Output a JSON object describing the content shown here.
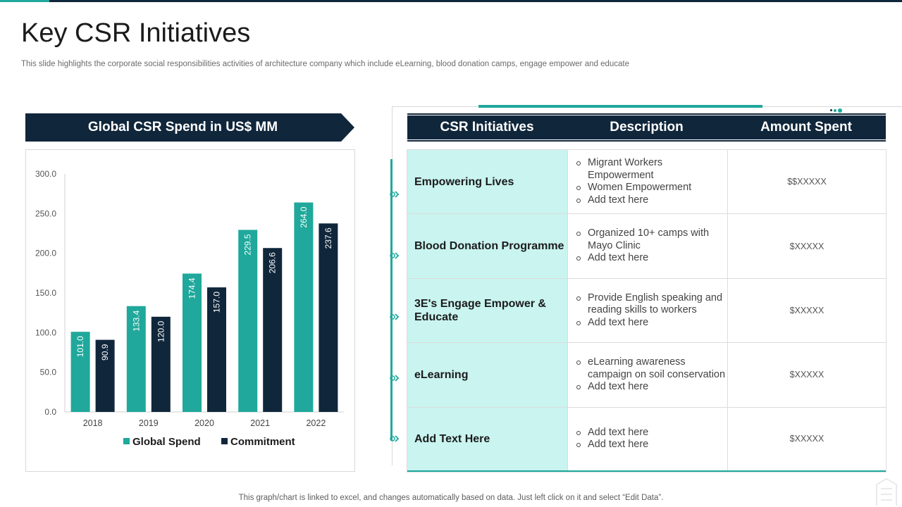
{
  "header": {
    "title": "Key CSR Initiatives",
    "subtitle": "This slide highlights the corporate social responsibilities activities of architecture company which include eLearning, blood donation camps, engage empower and educate"
  },
  "chart_panel": {
    "banner": "Global CSR Spend in US$ MM"
  },
  "chart_data": {
    "type": "bar",
    "title": "Global CSR Spend in US$ MM",
    "categories": [
      "2018",
      "2019",
      "2020",
      "2021",
      "2022"
    ],
    "series": [
      {
        "name": "Global Spend",
        "color": "#1fa89b",
        "values": [
          101.0,
          133.4,
          174.4,
          229.5,
          264.0
        ]
      },
      {
        "name": "Commitment",
        "color": "#10263b",
        "values": [
          90.9,
          120.0,
          157.0,
          206.6,
          237.6
        ]
      }
    ],
    "yticks": [
      "0.0",
      "50.0",
      "100.0",
      "150.0",
      "200.0",
      "250.0",
      "300.0"
    ],
    "ylim": [
      0,
      300
    ],
    "xlabel": "",
    "ylabel": "",
    "legend_position": "bottom",
    "grid": false
  },
  "table": {
    "headers": [
      "CSR Initiatives",
      "Description",
      "Amount Spent"
    ],
    "rows": [
      {
        "initiative": "Empowering Lives",
        "description": [
          "Migrant Workers Empowerment",
          "Women Empowerment",
          "Add text here"
        ],
        "amount": "$$XXXXX"
      },
      {
        "initiative": "Blood Donation Programme",
        "description": [
          "Organized 10+ camps with Mayo Clinic",
          "Add text here"
        ],
        "amount": "$XXXXX"
      },
      {
        "initiative": "3E's Engage Empower & Educate",
        "description": [
          "Provide English speaking and reading skills to workers",
          "Add text here"
        ],
        "amount": "$XXXXX"
      },
      {
        "initiative": "eLearning",
        "description": [
          "eLearning awareness campaign on soil conservation",
          "Add text here"
        ],
        "amount": "$XXXXX"
      },
      {
        "initiative": "Add Text Here",
        "description": [
          "Add text here",
          "Add text here"
        ],
        "amount": "$XXXXX"
      }
    ]
  },
  "footer": {
    "note": "This graph/chart is linked to excel,  and changes automatically based on data. Just left click on it and select “Edit Data”."
  },
  "colors": {
    "teal": "#1fa89b",
    "navy": "#10263b",
    "light_teal": "#c9f4f0"
  }
}
